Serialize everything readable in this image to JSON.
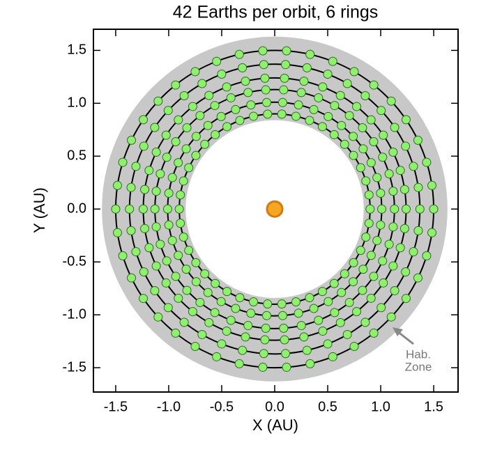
{
  "chart_data": {
    "type": "orbits",
    "title": "42 Earths per orbit, 6 rings",
    "x_label": "X (AU)",
    "y_label": "Y (AU)",
    "planets_per_orbit": 42,
    "ring_radii": [
      0.9,
      1.01,
      1.13,
      1.24,
      1.37,
      1.5
    ],
    "ring_color": "#000000",
    "planet_color": "#90ee70",
    "star": {
      "x": 0,
      "y": 0,
      "color": "#f5a623"
    },
    "hab_zone": {
      "inner": 0.84,
      "outer": 1.63,
      "color": "#c8c8c8",
      "label": [
        "Hab.",
        "Zone"
      ]
    },
    "xlim": [
      -1.71,
      1.73
    ],
    "ylim": [
      -1.73,
      1.7
    ],
    "xticks": [
      -1.5,
      {
        "value": -1,
        "label": "-1.0"
      },
      -0.5,
      {
        "value": 0,
        "label": "0.0"
      },
      0.5,
      {
        "value": 1,
        "label": "1.0"
      },
      1.5
    ],
    "yticks": [
      -1.5,
      {
        "value": -1,
        "label": "-1.0"
      },
      -0.5,
      {
        "value": 0,
        "label": "0.0"
      },
      0.5,
      {
        "value": 1,
        "label": "1.0"
      },
      1.5
    ]
  }
}
